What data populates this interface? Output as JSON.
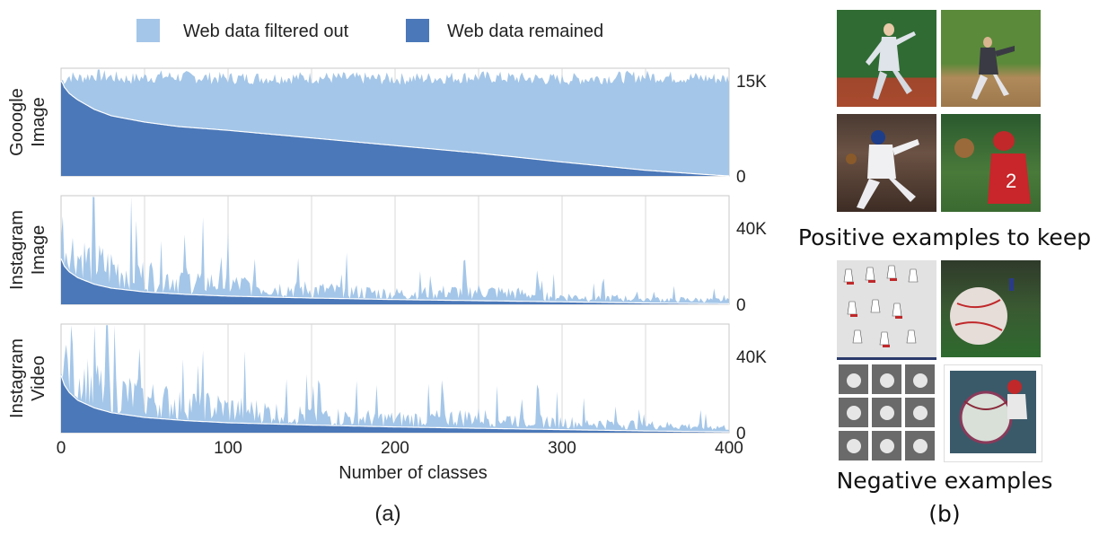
{
  "legend": {
    "items": [
      {
        "label": "Web data filtered out",
        "color": "#a4c6e8"
      },
      {
        "label": "Web data remained",
        "color": "#4b78b8"
      }
    ]
  },
  "panel_a_label": "(a)",
  "panel_b_label": "(b)",
  "positive_label": "Positive examples to keep",
  "negative_label": "Negative examples",
  "chart_data": [
    {
      "type": "area",
      "row_label": [
        "Gooogle",
        "Image"
      ],
      "xlabel": "Number of classes",
      "x_range": [
        0,
        400
      ],
      "x_ticks": [
        "0",
        "100",
        "200",
        "300",
        "400"
      ],
      "y_range": [
        0,
        17000
      ],
      "y_ticks": [
        {
          "value": 0,
          "label": "0"
        },
        {
          "value": 15000,
          "label": "15K"
        }
      ],
      "grid": true,
      "legend_placement": "top",
      "series": [
        {
          "name": "Web data filtered out",
          "color": "#a4c6e8",
          "x": [
            0,
            5,
            10,
            20,
            40,
            60,
            100,
            150,
            200,
            250,
            300,
            350,
            400
          ],
          "values": [
            15000,
            15800,
            15500,
            16000,
            15400,
            15800,
            15500,
            15600,
            15400,
            15700,
            15300,
            15800,
            15400
          ]
        },
        {
          "name": "Web data remained",
          "color": "#4b78b8",
          "x": [
            0,
            1,
            2,
            5,
            10,
            20,
            30,
            50,
            70,
            100,
            150,
            200,
            250,
            300,
            350,
            390,
            400
          ],
          "values": [
            15000,
            14600,
            14000,
            13000,
            12000,
            10500,
            9500,
            8500,
            7800,
            7200,
            6000,
            4800,
            3600,
            2200,
            900,
            150,
            0
          ]
        }
      ]
    },
    {
      "type": "area",
      "row_label": [
        "Instagram",
        "Image"
      ],
      "xlabel": "Number of classes",
      "x_range": [
        0,
        400
      ],
      "x_ticks": [
        "0",
        "100",
        "200",
        "300",
        "400"
      ],
      "y_range": [
        0,
        57000
      ],
      "y_ticks": [
        {
          "value": 0,
          "label": "0"
        },
        {
          "value": 40000,
          "label": "40K"
        }
      ],
      "grid": true,
      "series": [
        {
          "name": "Web data filtered out",
          "color": "#a4c6e8",
          "x": [
            0,
            5,
            20,
            50,
            100,
            150,
            200,
            250,
            300,
            350,
            400
          ],
          "values": [
            52000,
            40000,
            30000,
            22000,
            15000,
            11000,
            8000,
            10000,
            6000,
            4000,
            3000
          ]
        },
        {
          "name": "Web data remained",
          "color": "#4b78b8",
          "x": [
            0,
            2,
            5,
            10,
            20,
            30,
            50,
            75,
            100,
            150,
            200,
            250,
            300,
            350,
            400
          ],
          "values": [
            24000,
            20000,
            17000,
            14000,
            10500,
            8500,
            6500,
            5200,
            4300,
            3300,
            2500,
            1900,
            1300,
            700,
            300
          ]
        }
      ]
    },
    {
      "type": "area",
      "row_label": [
        "Instagram",
        "Video"
      ],
      "xlabel": "Number of classes",
      "x_range": [
        0,
        400
      ],
      "x_ticks": [
        "0",
        "100",
        "200",
        "300",
        "400"
      ],
      "y_range": [
        0,
        57000
      ],
      "y_ticks": [
        {
          "value": 0,
          "label": "0"
        },
        {
          "value": 40000,
          "label": "40K"
        }
      ],
      "grid": true,
      "series": [
        {
          "name": "Web data filtered out",
          "color": "#a4c6e8",
          "x": [
            0,
            5,
            20,
            50,
            100,
            150,
            200,
            250,
            300,
            350,
            400
          ],
          "values": [
            55000,
            45000,
            34000,
            25000,
            18000,
            13000,
            10000,
            12000,
            8000,
            6000,
            4000
          ]
        },
        {
          "name": "Web data remained",
          "color": "#4b78b8",
          "x": [
            0,
            2,
            5,
            10,
            20,
            30,
            50,
            75,
            100,
            150,
            200,
            250,
            300,
            350,
            400
          ],
          "values": [
            30000,
            25000,
            21000,
            17000,
            13000,
            10500,
            8000,
            6300,
            5200,
            4000,
            3000,
            2300,
            1600,
            900,
            400
          ]
        }
      ]
    }
  ]
}
